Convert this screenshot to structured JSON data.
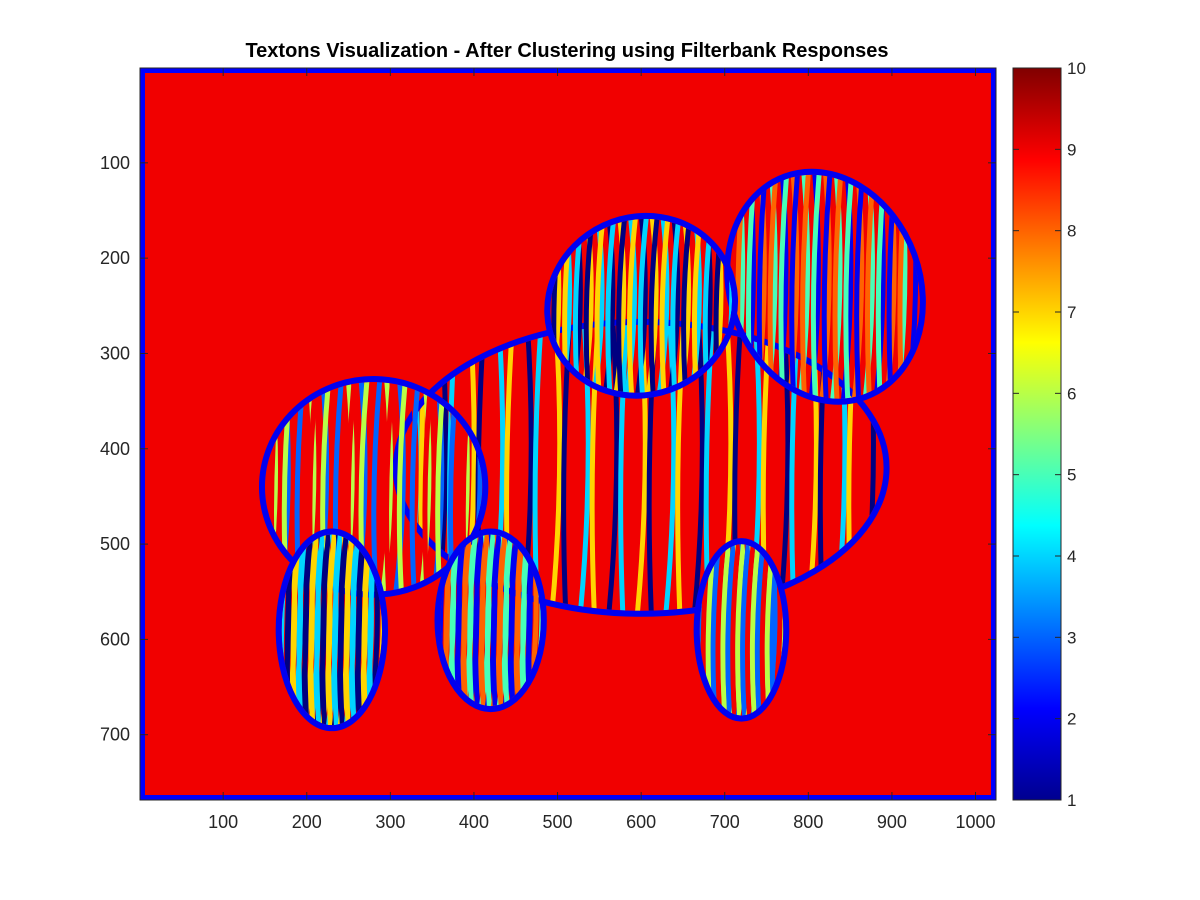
{
  "chart_data": {
    "type": "heatmap",
    "title": "Textons Visualization - After Clustering using Filterbank Responses",
    "xlabel": "",
    "ylabel": "",
    "xlim": [
      1,
      1024
    ],
    "ylim": [
      1,
      768
    ],
    "y_reversed": true,
    "x_ticks": [
      100,
      200,
      300,
      400,
      500,
      600,
      700,
      800,
      900,
      1000
    ],
    "y_ticks": [
      100,
      200,
      300,
      400,
      500,
      600,
      700
    ],
    "colormap": "jet",
    "colorbar": {
      "location": "right",
      "clim": [
        1,
        10
      ],
      "ticks": [
        1,
        2,
        3,
        4,
        5,
        6,
        7,
        8,
        9,
        10
      ]
    },
    "background_cluster": 9,
    "border_cluster": 2,
    "stripe_clusters": [
      1,
      2,
      3,
      4,
      5,
      6,
      7,
      8,
      9
    ],
    "subject": "two zebras with striped texton clusters"
  }
}
